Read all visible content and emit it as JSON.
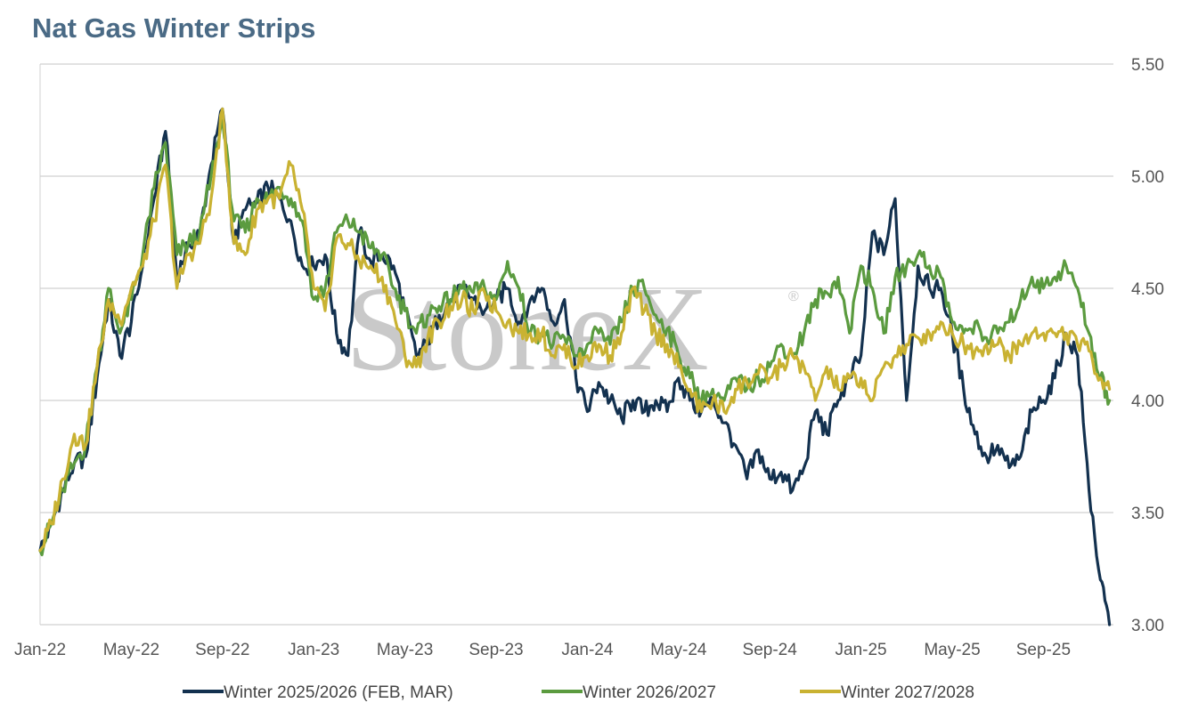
{
  "title": "Nat Gas Winter Strips",
  "watermark": {
    "text": "StoneX",
    "mark": "®"
  },
  "chart_data": {
    "type": "line",
    "title": "Nat Gas Winter Strips",
    "xlabel": "",
    "ylabel": "",
    "ylim": [
      3.0,
      5.5
    ],
    "yticks": [
      "3.00",
      "3.50",
      "4.00",
      "4.50",
      "5.00",
      "5.50"
    ],
    "y_axis_position": "right",
    "xlim": [
      "2022-01",
      "2025-12"
    ],
    "xticks": [
      "Jan-22",
      "May-22",
      "Sep-22",
      "Jan-23",
      "May-23",
      "Sep-23",
      "Jan-24",
      "May-24",
      "Sep-24",
      "Jan-25",
      "May-25",
      "Sep-25"
    ],
    "xtick_months": [
      0,
      4,
      8,
      12,
      16,
      20,
      24,
      28,
      32,
      36,
      40,
      44
    ],
    "grid": "horizontal",
    "legend_position": "bottom",
    "x_months": [
      0,
      0.5,
      1,
      1.5,
      2,
      2.5,
      3,
      3.5,
      4,
      4.5,
      5,
      5.5,
      6,
      6.5,
      7,
      7.5,
      8,
      8.5,
      9,
      9.5,
      10,
      10.5,
      11,
      11.5,
      12,
      12.5,
      13,
      13.5,
      14,
      14.5,
      15,
      15.5,
      16,
      16.5,
      17,
      17.5,
      18,
      18.5,
      19,
      19.5,
      20,
      20.5,
      21,
      21.5,
      22,
      22.5,
      23,
      23.5,
      24,
      24.5,
      25,
      25.5,
      26,
      26.5,
      27,
      27.5,
      28,
      28.5,
      29,
      29.5,
      30,
      30.5,
      31,
      31.5,
      32,
      32.5,
      33,
      33.5,
      34,
      34.5,
      35,
      35.5,
      36,
      36.5,
      37,
      37.5,
      38,
      38.5,
      39,
      39.5,
      40,
      40.5,
      41,
      41.5,
      42,
      42.5,
      43,
      43.5,
      44,
      44.5,
      45,
      45.5,
      46,
      46.5,
      46.9
    ],
    "series": [
      {
        "name": "Winter 2025/2026 (FEB, MAR)",
        "color": "#13314f",
        "values": [
          3.33,
          3.45,
          3.6,
          3.72,
          3.75,
          4.1,
          4.45,
          4.2,
          4.35,
          4.6,
          4.9,
          5.2,
          4.55,
          4.7,
          4.75,
          5.05,
          5.3,
          4.7,
          4.85,
          4.88,
          4.95,
          4.9,
          4.8,
          4.6,
          4.6,
          4.65,
          4.3,
          4.2,
          4.75,
          4.62,
          4.65,
          4.6,
          4.4,
          4.2,
          4.25,
          4.38,
          4.45,
          4.5,
          4.45,
          4.4,
          4.45,
          4.5,
          4.35,
          4.45,
          4.5,
          4.35,
          4.45,
          4.1,
          3.95,
          4.08,
          4.0,
          3.92,
          4.0,
          3.95,
          4.0,
          3.95,
          4.1,
          4.0,
          3.95,
          4.0,
          3.9,
          3.8,
          3.65,
          3.78,
          3.65,
          3.68,
          3.6,
          3.7,
          3.95,
          3.85,
          4.0,
          4.1,
          4.2,
          4.75,
          4.65,
          4.9,
          4.0,
          4.6,
          4.5,
          4.5,
          4.3,
          4.05,
          3.85,
          3.75,
          3.8,
          3.7,
          3.75,
          3.95,
          4.0,
          4.1,
          4.3,
          4.2,
          3.6,
          3.2,
          3.0
        ]
      },
      {
        "name": "Winter 2026/2027",
        "color": "#5b9b3f",
        "values": [
          3.33,
          3.45,
          3.6,
          3.72,
          3.8,
          4.15,
          4.5,
          4.3,
          4.45,
          4.65,
          4.95,
          5.15,
          4.65,
          4.7,
          4.75,
          5.0,
          5.25,
          4.8,
          4.75,
          4.9,
          4.9,
          4.95,
          4.9,
          4.8,
          4.45,
          4.5,
          4.75,
          4.8,
          4.75,
          4.68,
          4.65,
          4.5,
          4.4,
          4.3,
          4.38,
          4.42,
          4.45,
          4.5,
          4.48,
          4.5,
          4.45,
          4.62,
          4.5,
          4.3,
          4.3,
          4.25,
          4.28,
          4.2,
          4.25,
          4.3,
          4.25,
          4.35,
          4.5,
          4.5,
          4.38,
          4.32,
          4.2,
          4.1,
          4.0,
          4.05,
          4.0,
          4.1,
          4.05,
          4.1,
          4.15,
          4.25,
          4.2,
          4.3,
          4.45,
          4.48,
          4.55,
          4.3,
          4.6,
          4.5,
          4.3,
          4.55,
          4.6,
          4.65,
          4.6,
          4.55,
          4.35,
          4.3,
          4.35,
          4.28,
          4.3,
          4.35,
          4.45,
          4.55,
          4.5,
          4.55,
          4.6,
          4.5,
          4.3,
          4.1,
          4.0
        ]
      },
      {
        "name": "Winter 2027/2028",
        "color": "#c9b232",
        "values": [
          3.33,
          3.45,
          3.65,
          3.85,
          3.8,
          4.15,
          4.45,
          4.35,
          4.5,
          4.6,
          4.8,
          5.05,
          4.5,
          4.65,
          4.7,
          4.9,
          5.3,
          4.7,
          4.65,
          4.85,
          4.9,
          4.9,
          5.05,
          4.85,
          4.5,
          4.4,
          4.72,
          4.7,
          4.62,
          4.6,
          4.55,
          4.4,
          4.2,
          4.15,
          4.28,
          4.35,
          4.42,
          4.45,
          4.4,
          4.48,
          4.4,
          4.35,
          4.3,
          4.3,
          4.3,
          4.2,
          4.25,
          4.15,
          4.2,
          4.25,
          4.2,
          4.3,
          4.5,
          4.4,
          4.3,
          4.25,
          4.15,
          4.05,
          3.95,
          4.0,
          3.95,
          4.05,
          4.08,
          4.12,
          4.1,
          4.15,
          4.2,
          4.15,
          4.0,
          4.15,
          4.05,
          4.1,
          4.1,
          4.0,
          4.15,
          4.2,
          4.25,
          4.28,
          4.3,
          4.35,
          4.3,
          4.25,
          4.22,
          4.25,
          4.25,
          4.2,
          4.25,
          4.3,
          4.3,
          4.3,
          4.3,
          4.25,
          4.22,
          4.1,
          4.05
        ]
      }
    ]
  }
}
